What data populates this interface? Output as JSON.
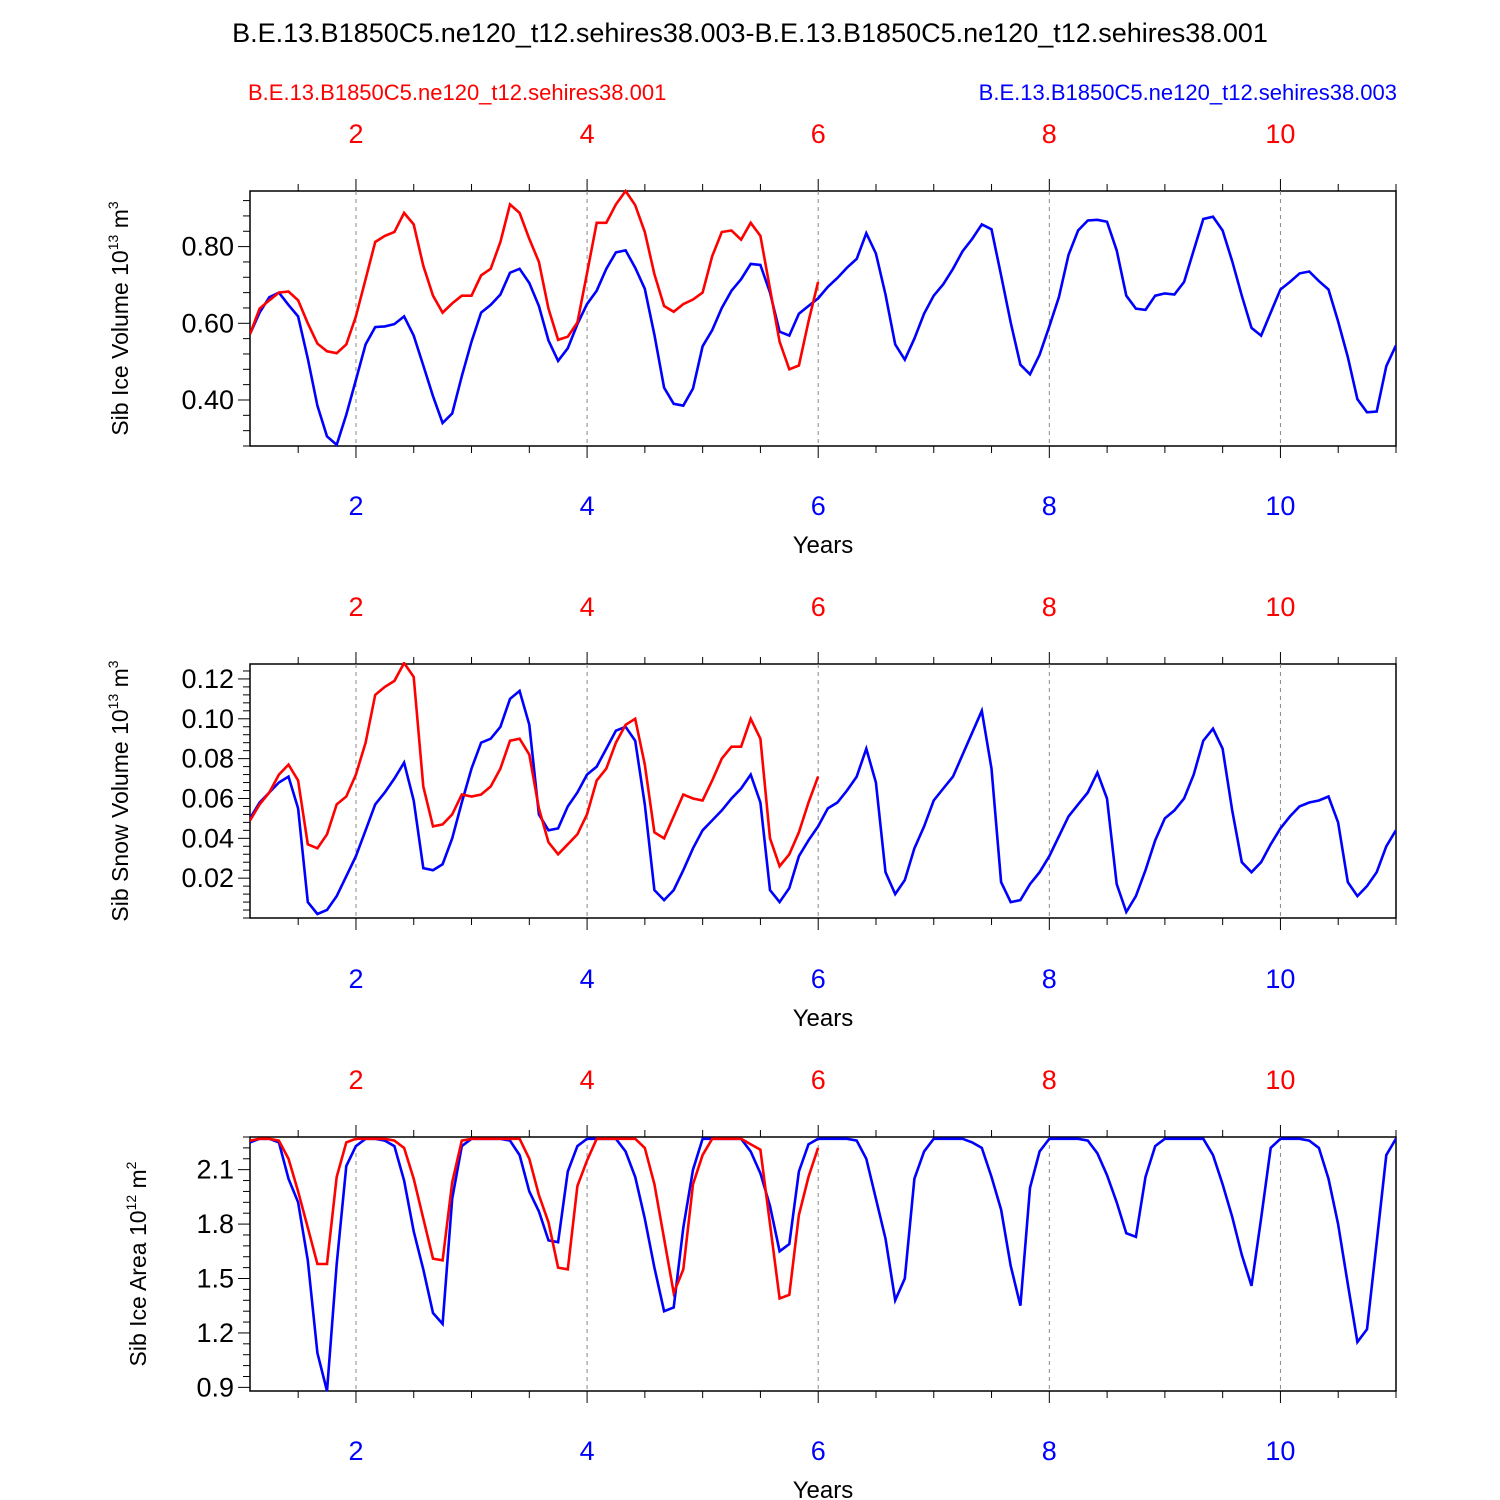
{
  "title": "B.E.13.B1850C5.ne120_t12.sehires38.003-B.E.13.B1850C5.ne120_t12.sehires38.001",
  "legend": {
    "red_case": "B.E.13.B1850C5.ne120_t12.sehires38.001",
    "blue_case": "B.E.13.B1850C5.ne120_t12.sehires38.003"
  },
  "colors": {
    "red": "#ff0000",
    "blue": "#0000ff",
    "grid": "#888888"
  },
  "chart_data": [
    {
      "type": "line",
      "name": "ice-volume",
      "ylabel": "Sib Ice Volume 10^13 m^3",
      "ylabel_main": "Sib Ice Volume 10",
      "ylabel_exp": "13",
      "ylabel_unit": " m",
      "ylabel_unit_exp": "3",
      "xlabel": "Years",
      "xlim": [
        1.083,
        11.0
      ],
      "ylim": [
        0.28,
        0.945
      ],
      "yticks": [
        0.4,
        0.6,
        0.8
      ],
      "ytick_labels": [
        "0.40",
        "0.60",
        "0.80"
      ],
      "xticks": [
        2,
        4,
        6,
        8,
        10
      ],
      "xtick_labels": [
        "2",
        "4",
        "6",
        "8",
        "10"
      ],
      "series": [
        {
          "name": "B.E.13.B1850C5.ne120_t12.sehires38.001",
          "color": "#ff0000",
          "x_start": 1.083,
          "x_step": 0.08333,
          "values": [
            0.572,
            0.638,
            0.66,
            0.68,
            0.683,
            0.66,
            0.6,
            0.547,
            0.527,
            0.522,
            0.545,
            0.618,
            0.715,
            0.812,
            0.828,
            0.838,
            0.888,
            0.858,
            0.75,
            0.672,
            0.628,
            0.652,
            0.672,
            0.672,
            0.725,
            0.742,
            0.812,
            0.91,
            0.888,
            0.82,
            0.76,
            0.638,
            0.557,
            0.565,
            0.602,
            0.73,
            0.862,
            0.862,
            0.91,
            0.945,
            0.908,
            0.838,
            0.728,
            0.645,
            0.63,
            0.65,
            0.662,
            0.68,
            0.775,
            0.838,
            0.842,
            0.818,
            0.862,
            0.828,
            0.69,
            0.552,
            0.48,
            0.49,
            0.605,
            0.708
          ]
        },
        {
          "name": "B.E.13.B1850C5.ne120_t12.sehires38.003",
          "color": "#0000ff",
          "x_start": 1.083,
          "x_step": 0.08333,
          "values": [
            0.572,
            0.628,
            0.668,
            0.68,
            0.648,
            0.618,
            0.508,
            0.385,
            0.305,
            0.283,
            0.362,
            0.452,
            0.545,
            0.59,
            0.592,
            0.598,
            0.618,
            0.568,
            0.49,
            0.41,
            0.34,
            0.365,
            0.462,
            0.552,
            0.628,
            0.648,
            0.675,
            0.732,
            0.742,
            0.705,
            0.645,
            0.555,
            0.502,
            0.535,
            0.598,
            0.65,
            0.685,
            0.742,
            0.785,
            0.79,
            0.745,
            0.69,
            0.57,
            0.432,
            0.39,
            0.385,
            0.43,
            0.54,
            0.582,
            0.64,
            0.685,
            0.715,
            0.755,
            0.752,
            0.68,
            0.578,
            0.568,
            0.625,
            0.645,
            0.665,
            0.695,
            0.718,
            0.745,
            0.768,
            0.835,
            0.782,
            0.675,
            0.545,
            0.505,
            0.56,
            0.625,
            0.672,
            0.702,
            0.742,
            0.788,
            0.82,
            0.858,
            0.845,
            0.725,
            0.602,
            0.492,
            0.467,
            0.518,
            0.592,
            0.668,
            0.778,
            0.842,
            0.868,
            0.87,
            0.865,
            0.79,
            0.672,
            0.638,
            0.635,
            0.672,
            0.678,
            0.675,
            0.708,
            0.79,
            0.872,
            0.878,
            0.842,
            0.762,
            0.672,
            0.588,
            0.568,
            0.628,
            0.688,
            0.708,
            0.73,
            0.735,
            0.71,
            0.688,
            0.605,
            0.512,
            0.402,
            0.368,
            0.37,
            0.488,
            0.542
          ]
        }
      ]
    },
    {
      "type": "line",
      "name": "snow-volume",
      "ylabel": "Sib Snow Volume 10^13 m^3",
      "ylabel_main": "Sib Snow Volume 10",
      "ylabel_exp": "13",
      "ylabel_unit": " m",
      "ylabel_unit_exp": "3",
      "xlabel": "Years",
      "xlim": [
        1.083,
        11.0
      ],
      "ylim": [
        0.0,
        0.1275
      ],
      "yticks": [
        0.02,
        0.04,
        0.06,
        0.08,
        0.1,
        0.12
      ],
      "ytick_labels": [
        "0.02",
        "0.04",
        "0.06",
        "0.08",
        "0.10",
        "0.12"
      ],
      "xticks": [
        2,
        4,
        6,
        8,
        10
      ],
      "xtick_labels": [
        "2",
        "4",
        "6",
        "8",
        "10"
      ],
      "series": [
        {
          "name": "B.E.13.B1850C5.ne120_t12.sehires38.001",
          "color": "#ff0000",
          "x_start": 1.083,
          "x_step": 0.08333,
          "values": [
            0.049,
            0.057,
            0.063,
            0.072,
            0.077,
            0.069,
            0.037,
            0.035,
            0.042,
            0.057,
            0.061,
            0.072,
            0.088,
            0.112,
            0.116,
            0.119,
            0.128,
            0.121,
            0.066,
            0.046,
            0.047,
            0.052,
            0.062,
            0.061,
            0.062,
            0.066,
            0.075,
            0.089,
            0.09,
            0.082,
            0.055,
            0.038,
            0.032,
            0.037,
            0.042,
            0.052,
            0.069,
            0.075,
            0.088,
            0.097,
            0.1,
            0.077,
            0.043,
            0.04,
            0.051,
            0.062,
            0.06,
            0.059,
            0.069,
            0.08,
            0.086,
            0.086,
            0.1,
            0.09,
            0.04,
            0.026,
            0.032,
            0.043,
            0.058,
            0.071
          ]
        },
        {
          "name": "B.E.13.B1850C5.ne120_t12.sehires38.003",
          "color": "#0000ff",
          "x_start": 1.083,
          "x_step": 0.08333,
          "values": [
            0.05,
            0.058,
            0.063,
            0.068,
            0.071,
            0.055,
            0.008,
            0.002,
            0.004,
            0.011,
            0.021,
            0.031,
            0.044,
            0.057,
            0.063,
            0.07,
            0.078,
            0.059,
            0.025,
            0.024,
            0.027,
            0.04,
            0.058,
            0.075,
            0.088,
            0.09,
            0.096,
            0.11,
            0.114,
            0.097,
            0.052,
            0.044,
            0.045,
            0.056,
            0.063,
            0.072,
            0.076,
            0.085,
            0.094,
            0.096,
            0.089,
            0.057,
            0.014,
            0.009,
            0.014,
            0.024,
            0.035,
            0.044,
            0.049,
            0.054,
            0.06,
            0.065,
            0.072,
            0.058,
            0.014,
            0.008,
            0.015,
            0.031,
            0.039,
            0.046,
            0.055,
            0.058,
            0.064,
            0.071,
            0.085,
            0.068,
            0.023,
            0.012,
            0.019,
            0.035,
            0.046,
            0.059,
            0.065,
            0.071,
            0.082,
            0.093,
            0.104,
            0.075,
            0.018,
            0.008,
            0.009,
            0.017,
            0.023,
            0.031,
            0.041,
            0.051,
            0.057,
            0.063,
            0.073,
            0.06,
            0.017,
            0.003,
            0.011,
            0.024,
            0.039,
            0.05,
            0.054,
            0.06,
            0.072,
            0.089,
            0.095,
            0.085,
            0.054,
            0.028,
            0.023,
            0.028,
            0.037,
            0.045,
            0.051,
            0.056,
            0.058,
            0.059,
            0.061,
            0.048,
            0.018,
            0.011,
            0.016,
            0.023,
            0.036,
            0.044
          ]
        }
      ]
    },
    {
      "type": "line",
      "name": "ice-area",
      "ylabel": "Sib Ice Area 10^12 m^2",
      "ylabel_main": "Sib Ice Area 10",
      "ylabel_exp": "12",
      "ylabel_unit": " m",
      "ylabel_unit_exp": "2",
      "xlabel": "Years",
      "xlim": [
        1.083,
        11.0
      ],
      "ylim": [
        0.88,
        2.28
      ],
      "yticks": [
        0.9,
        1.2,
        1.5,
        1.8,
        2.1
      ],
      "ytick_labels": [
        "0.9",
        "1.2",
        "1.5",
        "1.8",
        "2.1"
      ],
      "xticks": [
        2,
        4,
        6,
        8,
        10
      ],
      "xtick_labels": [
        "2",
        "4",
        "6",
        "8",
        "10"
      ],
      "series": [
        {
          "name": "B.E.13.B1850C5.ne120_t12.sehires38.001",
          "color": "#ff0000",
          "x_start": 1.083,
          "x_step": 0.08333,
          "values": [
            2.26,
            2.27,
            2.27,
            2.26,
            2.16,
            1.98,
            1.78,
            1.58,
            1.58,
            2.06,
            2.25,
            2.27,
            2.27,
            2.27,
            2.27,
            2.26,
            2.22,
            2.05,
            1.83,
            1.61,
            1.6,
            2.03,
            2.26,
            2.27,
            2.27,
            2.27,
            2.27,
            2.27,
            2.27,
            2.16,
            1.96,
            1.81,
            1.56,
            1.55,
            2.01,
            2.15,
            2.27,
            2.27,
            2.27,
            2.27,
            2.27,
            2.22,
            2.02,
            1.72,
            1.42,
            1.55,
            2.02,
            2.18,
            2.27,
            2.27,
            2.27,
            2.27,
            2.24,
            2.21,
            1.8,
            1.39,
            1.41,
            1.85,
            2.06,
            2.22
          ]
        },
        {
          "name": "B.E.13.B1850C5.ne120_t12.sehires38.003",
          "color": "#0000ff",
          "x_start": 1.083,
          "x_step": 0.08333,
          "values": [
            2.25,
            2.27,
            2.27,
            2.25,
            2.05,
            1.92,
            1.6,
            1.09,
            0.88,
            1.58,
            2.12,
            2.23,
            2.27,
            2.27,
            2.26,
            2.23,
            2.04,
            1.76,
            1.55,
            1.31,
            1.25,
            1.94,
            2.23,
            2.27,
            2.27,
            2.27,
            2.27,
            2.26,
            2.18,
            1.98,
            1.87,
            1.71,
            1.7,
            2.09,
            2.23,
            2.27,
            2.27,
            2.27,
            2.27,
            2.2,
            2.06,
            1.83,
            1.56,
            1.32,
            1.34,
            1.78,
            2.1,
            2.27,
            2.27,
            2.27,
            2.27,
            2.27,
            2.2,
            2.08,
            1.9,
            1.65,
            1.69,
            2.09,
            2.24,
            2.27,
            2.27,
            2.27,
            2.27,
            2.26,
            2.16,
            1.94,
            1.72,
            1.38,
            1.5,
            2.05,
            2.2,
            2.27,
            2.27,
            2.27,
            2.27,
            2.25,
            2.22,
            2.06,
            1.88,
            1.57,
            1.35,
            2.0,
            2.2,
            2.27,
            2.27,
            2.27,
            2.27,
            2.26,
            2.19,
            2.07,
            1.92,
            1.75,
            1.73,
            2.06,
            2.23,
            2.27,
            2.27,
            2.27,
            2.27,
            2.27,
            2.18,
            2.02,
            1.84,
            1.63,
            1.46,
            1.83,
            2.22,
            2.27,
            2.27,
            2.27,
            2.26,
            2.22,
            2.05,
            1.8,
            1.47,
            1.15,
            1.22,
            1.7,
            2.18,
            2.27
          ]
        }
      ]
    }
  ]
}
